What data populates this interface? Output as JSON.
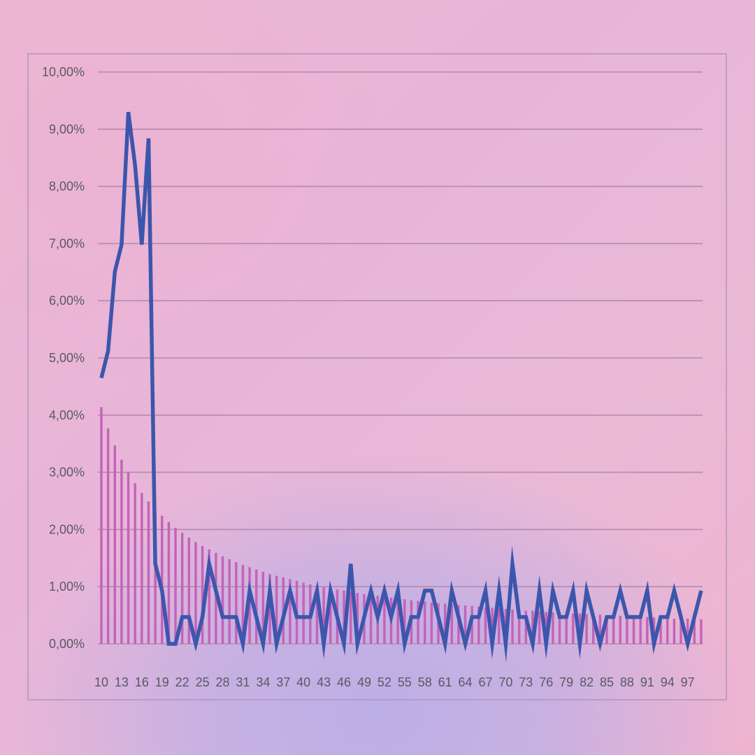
{
  "chart_data": {
    "type": "bar+line",
    "title": "",
    "xlabel": "",
    "ylabel": "",
    "ylim": [
      0,
      10
    ],
    "y_ticks": [
      "0,00%",
      "1,00%",
      "2,00%",
      "3,00%",
      "4,00%",
      "5,00%",
      "6,00%",
      "7,00%",
      "8,00%",
      "9,00%",
      "10,00%"
    ],
    "y_tick_values": [
      0,
      1,
      2,
      3,
      4,
      5,
      6,
      7,
      8,
      9,
      10
    ],
    "x": [
      10,
      11,
      12,
      13,
      14,
      15,
      16,
      17,
      18,
      19,
      20,
      21,
      22,
      23,
      24,
      25,
      26,
      27,
      28,
      29,
      30,
      31,
      32,
      33,
      34,
      35,
      36,
      37,
      38,
      39,
      40,
      41,
      42,
      43,
      44,
      45,
      46,
      47,
      48,
      49,
      50,
      51,
      52,
      53,
      54,
      55,
      56,
      57,
      58,
      59,
      60,
      61,
      62,
      63,
      64,
      65,
      66,
      67,
      68,
      69,
      70,
      71,
      72,
      73,
      74,
      75,
      76,
      77,
      78,
      79,
      80,
      81,
      82,
      83,
      84,
      85,
      86,
      87,
      88,
      89,
      90,
      91,
      92,
      93,
      94,
      95,
      96,
      97,
      98,
      99
    ],
    "x_tick_labels": [
      "10",
      "13",
      "16",
      "19",
      "22",
      "25",
      "28",
      "31",
      "34",
      "37",
      "40",
      "43",
      "46",
      "49",
      "52",
      "55",
      "58",
      "61",
      "64",
      "67",
      "70",
      "73",
      "76",
      "79",
      "82",
      "85",
      "88",
      "91",
      "94",
      "97"
    ],
    "grid": true,
    "legend": "none",
    "series": [
      {
        "type": "bar",
        "color": "#c462b8",
        "values": [
          4.14,
          3.77,
          3.47,
          3.22,
          3.0,
          2.81,
          2.64,
          2.49,
          2.36,
          2.24,
          2.13,
          2.03,
          1.94,
          1.86,
          1.78,
          1.71,
          1.65,
          1.59,
          1.53,
          1.48,
          1.43,
          1.38,
          1.34,
          1.3,
          1.26,
          1.22,
          1.19,
          1.16,
          1.13,
          1.1,
          1.07,
          1.04,
          1.02,
          0.99,
          0.97,
          0.95,
          0.93,
          0.91,
          0.89,
          0.87,
          0.85,
          0.84,
          0.82,
          0.81,
          0.79,
          0.78,
          0.76,
          0.75,
          0.74,
          0.72,
          0.71,
          0.7,
          0.69,
          0.68,
          0.67,
          0.66,
          0.65,
          0.64,
          0.63,
          0.62,
          0.61,
          0.6,
          0.59,
          0.58,
          0.58,
          0.57,
          0.56,
          0.55,
          0.55,
          0.54,
          0.53,
          0.53,
          0.52,
          0.51,
          0.51,
          0.5,
          0.49,
          0.49,
          0.48,
          0.48,
          0.47,
          0.47,
          0.46,
          0.45,
          0.45,
          0.44,
          0.44,
          0.44,
          0.43,
          0.43
        ]
      },
      {
        "type": "line",
        "color": "#3c56ac",
        "values": [
          4.65,
          5.12,
          6.51,
          6.98,
          9.3,
          8.37,
          6.98,
          8.84,
          1.4,
          0.93,
          0,
          0,
          0.47,
          0.47,
          0,
          0.47,
          1.4,
          0.93,
          0.47,
          0.47,
          0.47,
          0,
          0.93,
          0.47,
          0,
          0.93,
          0,
          0.47,
          0.93,
          0.47,
          0.47,
          0.47,
          0.93,
          0,
          0.93,
          0.47,
          0,
          1.4,
          0,
          0.47,
          0.93,
          0.47,
          0.93,
          0.47,
          0.93,
          0,
          0.47,
          0.47,
          0.93,
          0.93,
          0.47,
          0,
          0.93,
          0.47,
          0,
          0.47,
          0.47,
          0.93,
          0,
          0.93,
          0,
          1.4,
          0.47,
          0.47,
          0,
          0.93,
          0,
          0.93,
          0.47,
          0.47,
          0.93,
          0,
          0.93,
          0.47,
          0,
          0.47,
          0.47,
          0.93,
          0.47,
          0.47,
          0.47,
          0.93,
          0,
          0.47,
          0.47,
          0.93,
          0.47,
          0,
          0.47,
          0.93
        ]
      }
    ]
  }
}
